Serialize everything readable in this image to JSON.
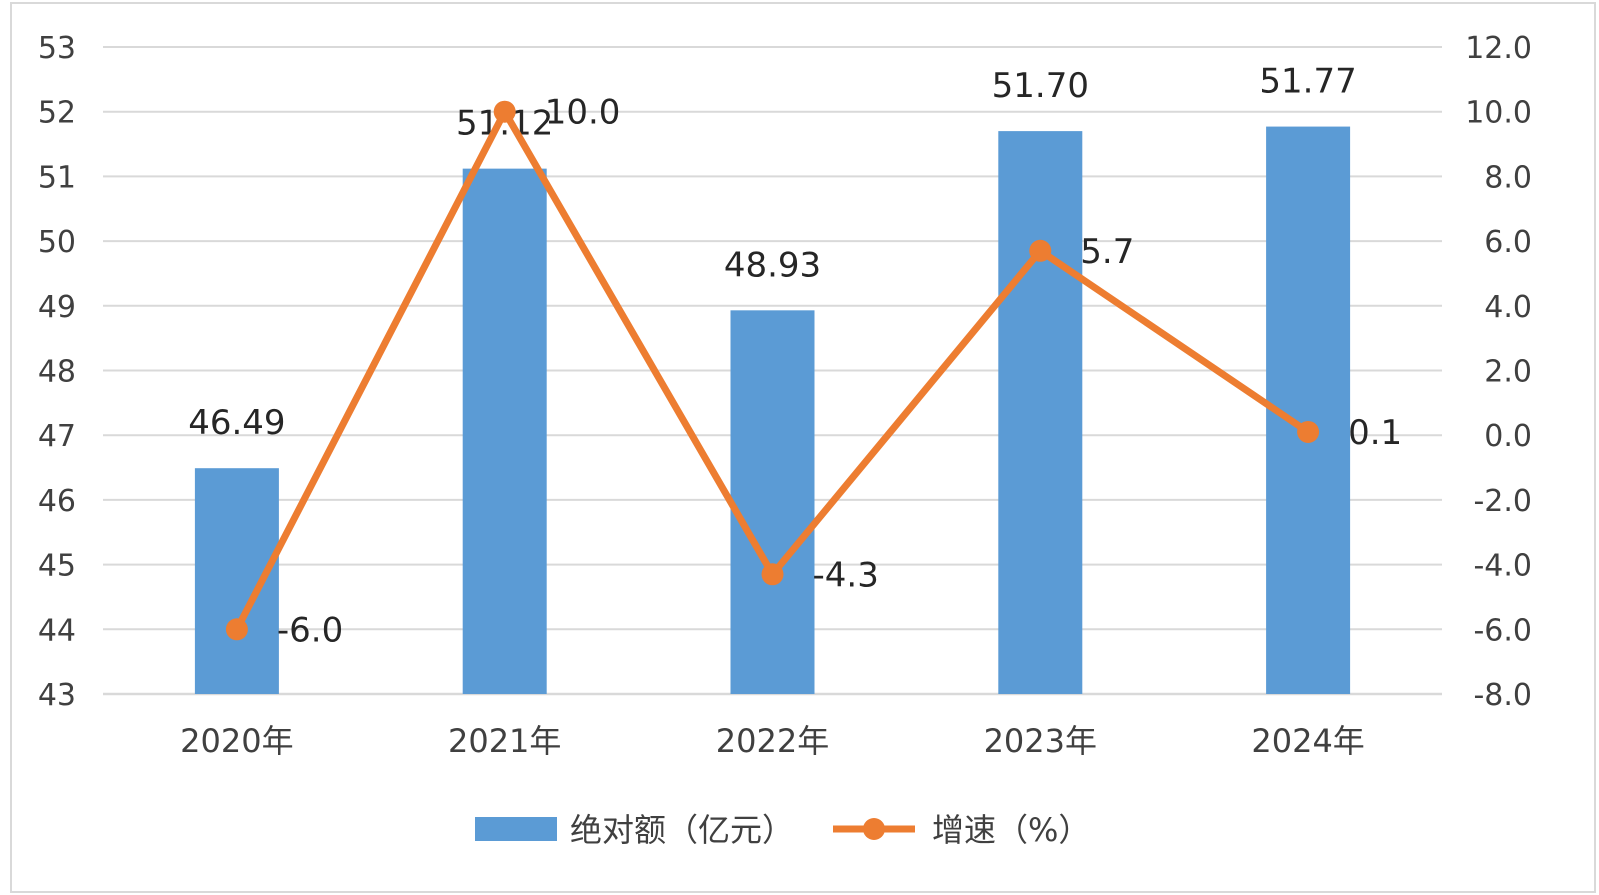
{
  "chart_data": {
    "type": "bar+line",
    "categories": [
      "2020年",
      "2021年",
      "2022年",
      "2023年",
      "2024年"
    ],
    "series": [
      {
        "name": "绝对额（亿元）",
        "type": "bar",
        "axis": "left",
        "values": [
          46.49,
          51.12,
          48.93,
          51.7,
          51.77
        ],
        "labels": [
          "46.49",
          "51.12",
          "48.93",
          "51.70",
          "51.77"
        ],
        "color": "#5b9bd5"
      },
      {
        "name": "增速（%）",
        "type": "line",
        "axis": "right",
        "values": [
          -6.0,
          10.0,
          -4.3,
          5.7,
          0.1
        ],
        "labels": [
          "-6.0",
          "10.0",
          "-4.3",
          "5.7",
          "0.1"
        ],
        "color": "#ed7d31"
      }
    ],
    "y_left": {
      "ylim": [
        43,
        53
      ],
      "ticks": [
        "43",
        "44",
        "45",
        "46",
        "47",
        "48",
        "49",
        "50",
        "51",
        "52",
        "53"
      ]
    },
    "y_right": {
      "ylim": [
        -8.0,
        12.0
      ],
      "ticks": [
        "-8.0",
        "-6.0",
        "-4.0",
        "-2.0",
        "0.0",
        "2.0",
        "4.0",
        "6.0",
        "8.0",
        "10.0",
        "12.0"
      ]
    },
    "grid": true,
    "legend": "bottom",
    "gridline_color": "#d9d9d9"
  }
}
